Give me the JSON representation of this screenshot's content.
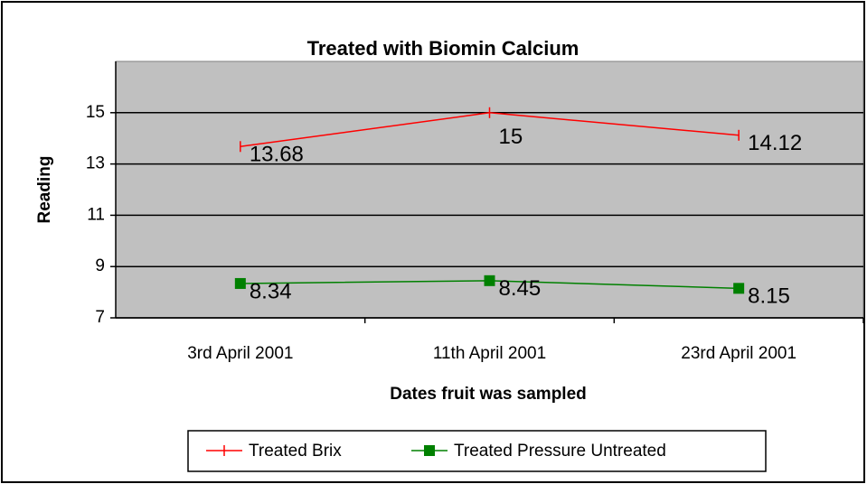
{
  "chart_data": {
    "type": "line",
    "title": "Treated with Biomin Calcium",
    "x_label": "Dates fruit was sampled",
    "y_label": "Reading",
    "categories": [
      "3rd April 2001",
      "11th April 2001",
      "23rd April 2001"
    ],
    "series": [
      {
        "name": "Treated Brix",
        "color": "#ff0000",
        "values": [
          13.68,
          15,
          14.12
        ]
      },
      {
        "name": "Treated Pressure Untreated",
        "color": "#008000",
        "values": [
          8.34,
          8.45,
          8.15
        ]
      }
    ],
    "ylim": [
      7,
      17
    ],
    "yticks": [
      7,
      9,
      11,
      13,
      15
    ],
    "grid": true,
    "legend": "bottom"
  }
}
